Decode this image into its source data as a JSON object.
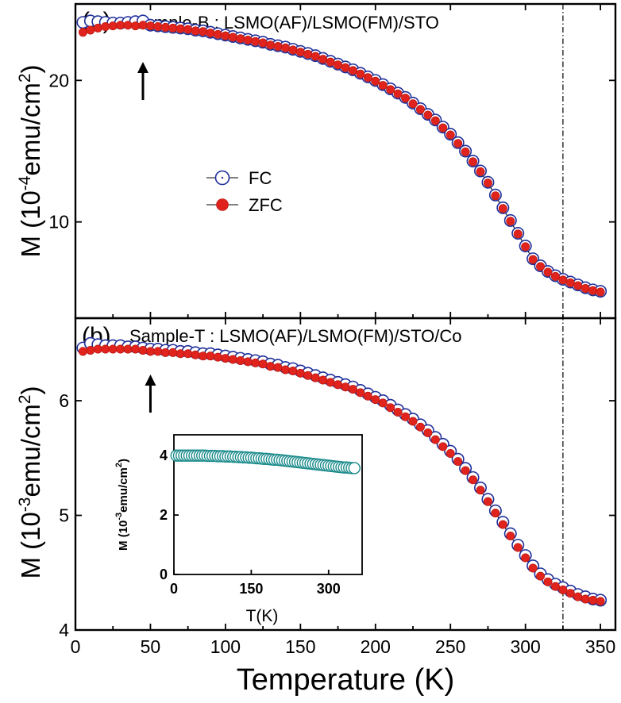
{
  "colors": {
    "fc_edge": "#1f2f9a",
    "zfc_fill": "#e0231c",
    "inset_edge": "#1a8a8a",
    "axis": "#000000"
  },
  "shared_x": {
    "label": "Temperature (K)",
    "range": [
      0,
      360
    ],
    "ticks": [
      0,
      50,
      100,
      150,
      200,
      250,
      300,
      350
    ],
    "marker_line_x": 325
  },
  "chart_data": [
    {
      "type": "scatter",
      "panel_label": "(a)",
      "title": "Sample-B : LSMO(AF)/LSMO(FM)/STO",
      "ylabel": "M (10^-4 emu/cm^2)",
      "ylabel_parts": {
        "prefix": "M (10",
        "exp": "-4",
        "unit": "emu/cm",
        "unit_exp": "2",
        "suffix": ")"
      },
      "ylim": [
        3.2,
        25.4
      ],
      "yticks": [
        10,
        20
      ],
      "legend": {
        "entries": [
          "FC",
          "ZFC"
        ],
        "placement": "center-left"
      },
      "arrow_at_x": 45,
      "series": [
        {
          "name": "FC",
          "marker": "open-circle",
          "x": [
            5,
            10,
            15,
            20,
            25,
            30,
            35,
            40,
            45,
            50,
            55,
            60,
            65,
            70,
            75,
            80,
            85,
            90,
            95,
            100,
            105,
            110,
            115,
            120,
            125,
            130,
            135,
            140,
            145,
            150,
            155,
            160,
            165,
            170,
            175,
            180,
            185,
            190,
            195,
            200,
            205,
            210,
            215,
            220,
            225,
            230,
            235,
            240,
            245,
            250,
            255,
            260,
            265,
            270,
            275,
            280,
            285,
            290,
            295,
            300,
            305,
            310,
            315,
            320,
            325,
            330,
            335,
            340,
            345,
            350
          ],
          "y": [
            24.1,
            24.2,
            24.15,
            24.1,
            24.05,
            24.05,
            24.1,
            24.15,
            24.2,
            23.9,
            23.85,
            23.8,
            23.75,
            23.7,
            23.65,
            23.55,
            23.5,
            23.4,
            23.3,
            23.2,
            23.1,
            23.0,
            22.9,
            22.8,
            22.7,
            22.55,
            22.45,
            22.35,
            22.2,
            22.05,
            21.9,
            21.75,
            21.55,
            21.35,
            21.15,
            20.95,
            20.75,
            20.5,
            20.25,
            20.0,
            19.7,
            19.4,
            19.1,
            18.8,
            18.4,
            18.0,
            17.6,
            17.2,
            16.7,
            16.2,
            15.6,
            15.0,
            14.3,
            13.6,
            12.8,
            11.9,
            11.0,
            10.1,
            9.2,
            8.3,
            7.4,
            6.9,
            6.5,
            6.2,
            5.95,
            5.75,
            5.55,
            5.35,
            5.2,
            5.1
          ]
        },
        {
          "name": "ZFC",
          "marker": "filled-circle",
          "x": [
            5,
            10,
            15,
            20,
            25,
            30,
            35,
            40,
            45,
            50,
            55,
            60,
            65,
            70,
            75,
            80,
            85,
            90,
            95,
            100,
            105,
            110,
            115,
            120,
            125,
            130,
            135,
            140,
            145,
            150,
            155,
            160,
            165,
            170,
            175,
            180,
            185,
            190,
            195,
            200,
            205,
            210,
            215,
            220,
            225,
            230,
            235,
            240,
            245,
            250,
            255,
            260,
            265,
            270,
            275,
            280,
            285,
            290,
            295,
            300,
            305,
            310,
            315,
            320,
            325,
            330,
            335,
            340,
            345,
            350
          ],
          "y": [
            23.4,
            23.55,
            23.7,
            23.8,
            23.85,
            23.9,
            23.9,
            23.85,
            23.9,
            23.85,
            23.8,
            23.75,
            23.7,
            23.65,
            23.6,
            23.5,
            23.45,
            23.35,
            23.25,
            23.15,
            23.05,
            22.95,
            22.85,
            22.75,
            22.65,
            22.5,
            22.4,
            22.3,
            22.15,
            22.0,
            21.85,
            21.7,
            21.5,
            21.3,
            21.1,
            20.9,
            20.7,
            20.45,
            20.2,
            19.95,
            19.65,
            19.35,
            19.05,
            18.75,
            18.35,
            17.95,
            17.55,
            17.15,
            16.65,
            16.15,
            15.55,
            14.95,
            14.25,
            13.55,
            12.75,
            11.85,
            10.95,
            10.05,
            9.15,
            8.25,
            7.35,
            6.85,
            6.45,
            6.15,
            5.9,
            5.7,
            5.5,
            5.3,
            5.15,
            5.05
          ]
        }
      ]
    },
    {
      "type": "scatter",
      "panel_label": "(b)",
      "title": "Sample-T : LSMO(AF)/LSMO(FM)/STO/Co",
      "ylabel": "M (10^-3 emu/cm^2)",
      "ylabel_parts": {
        "prefix": "M (10",
        "exp": "-3",
        "unit": "emu/cm",
        "unit_exp": "2",
        "suffix": ")"
      },
      "ylim": [
        4.0,
        6.72
      ],
      "yticks": [
        4,
        5,
        6
      ],
      "arrow_at_x": 50,
      "series": [
        {
          "name": "FC",
          "marker": "open-circle",
          "x": [
            5,
            10,
            15,
            20,
            25,
            30,
            35,
            40,
            45,
            50,
            55,
            60,
            65,
            70,
            75,
            80,
            85,
            90,
            95,
            100,
            105,
            110,
            115,
            120,
            125,
            130,
            135,
            140,
            145,
            150,
            155,
            160,
            165,
            170,
            175,
            180,
            185,
            190,
            195,
            200,
            205,
            210,
            215,
            220,
            225,
            230,
            235,
            240,
            245,
            250,
            255,
            260,
            265,
            270,
            275,
            280,
            285,
            290,
            295,
            300,
            305,
            310,
            315,
            320,
            325,
            330,
            335,
            340,
            345,
            350
          ],
          "y": [
            6.46,
            6.5,
            6.49,
            6.48,
            6.48,
            6.48,
            6.47,
            6.47,
            6.46,
            6.45,
            6.45,
            6.44,
            6.44,
            6.43,
            6.43,
            6.42,
            6.41,
            6.41,
            6.4,
            6.39,
            6.38,
            6.37,
            6.36,
            6.35,
            6.34,
            6.32,
            6.31,
            6.29,
            6.28,
            6.26,
            6.24,
            6.22,
            6.2,
            6.18,
            6.16,
            6.14,
            6.12,
            6.09,
            6.06,
            6.03,
            6.0,
            5.96,
            5.92,
            5.88,
            5.84,
            5.79,
            5.74,
            5.68,
            5.62,
            5.56,
            5.49,
            5.41,
            5.33,
            5.24,
            5.14,
            5.04,
            4.94,
            4.84,
            4.74,
            4.65,
            4.56,
            4.49,
            4.44,
            4.4,
            4.37,
            4.34,
            4.31,
            4.29,
            4.27,
            4.26
          ]
        },
        {
          "name": "ZFC",
          "marker": "filled-circle",
          "x": [
            5,
            10,
            15,
            20,
            25,
            30,
            35,
            40,
            45,
            50,
            55,
            60,
            65,
            70,
            75,
            80,
            85,
            90,
            95,
            100,
            105,
            110,
            115,
            120,
            125,
            130,
            135,
            140,
            145,
            150,
            155,
            160,
            165,
            170,
            175,
            180,
            185,
            190,
            195,
            200,
            205,
            210,
            215,
            220,
            225,
            230,
            235,
            240,
            245,
            250,
            255,
            260,
            265,
            270,
            275,
            280,
            285,
            290,
            295,
            300,
            305,
            310,
            315,
            320,
            325,
            330,
            335,
            340,
            345,
            350
          ],
          "y": [
            6.43,
            6.44,
            6.45,
            6.45,
            6.45,
            6.45,
            6.45,
            6.45,
            6.44,
            6.43,
            6.43,
            6.42,
            6.42,
            6.41,
            6.41,
            6.4,
            6.39,
            6.39,
            6.38,
            6.37,
            6.36,
            6.35,
            6.34,
            6.33,
            6.32,
            6.3,
            6.29,
            6.27,
            6.26,
            6.24,
            6.22,
            6.2,
            6.18,
            6.16,
            6.14,
            6.12,
            6.1,
            6.07,
            6.04,
            6.01,
            5.98,
            5.94,
            5.9,
            5.86,
            5.82,
            5.77,
            5.72,
            5.66,
            5.6,
            5.54,
            5.47,
            5.39,
            5.31,
            5.22,
            5.12,
            5.02,
            4.92,
            4.82,
            4.72,
            4.63,
            4.54,
            4.47,
            4.42,
            4.38,
            4.35,
            4.32,
            4.29,
            4.27,
            4.26,
            4.25
          ]
        }
      ]
    },
    {
      "type": "scatter",
      "panel_label": "",
      "title": "",
      "ylabel": "M (10^-3 emu/cm^2)",
      "ylabel_parts": {
        "prefix": "M (10",
        "exp": "-3",
        "unit": "emu/cm",
        "unit_exp": "2",
        "suffix": ")"
      },
      "xlabel": "T(K)",
      "xlim": [
        0,
        365
      ],
      "xticks": [
        0,
        150,
        300
      ],
      "ylim": [
        0,
        4.7
      ],
      "yticks": [
        0,
        2,
        4
      ],
      "series": [
        {
          "marker": "open-circle",
          "x": [
            5,
            10,
            15,
            20,
            25,
            30,
            35,
            40,
            45,
            50,
            55,
            60,
            65,
            70,
            75,
            80,
            85,
            90,
            95,
            100,
            105,
            110,
            115,
            120,
            125,
            130,
            135,
            140,
            145,
            150,
            155,
            160,
            165,
            170,
            175,
            180,
            185,
            190,
            195,
            200,
            205,
            210,
            215,
            220,
            225,
            230,
            235,
            240,
            245,
            250,
            255,
            260,
            265,
            270,
            275,
            280,
            285,
            290,
            295,
            300,
            305,
            310,
            315,
            320,
            325,
            330,
            335,
            340,
            345,
            350
          ],
          "y": [
            4.0,
            4.0,
            4.0,
            4.0,
            4.0,
            4.0,
            4.0,
            4.0,
            4.0,
            4.0,
            4.0,
            4.0,
            3.99,
            3.99,
            3.99,
            3.99,
            3.98,
            3.98,
            3.98,
            3.97,
            3.97,
            3.97,
            3.96,
            3.96,
            3.95,
            3.95,
            3.94,
            3.94,
            3.93,
            3.93,
            3.92,
            3.91,
            3.91,
            3.9,
            3.89,
            3.89,
            3.88,
            3.87,
            3.86,
            3.86,
            3.85,
            3.84,
            3.83,
            3.82,
            3.81,
            3.8,
            3.79,
            3.78,
            3.77,
            3.76,
            3.75,
            3.74,
            3.73,
            3.72,
            3.71,
            3.7,
            3.69,
            3.68,
            3.67,
            3.66,
            3.65,
            3.64,
            3.63,
            3.62,
            3.61,
            3.6,
            3.6,
            3.59,
            3.58,
            3.58
          ]
        }
      ]
    }
  ]
}
